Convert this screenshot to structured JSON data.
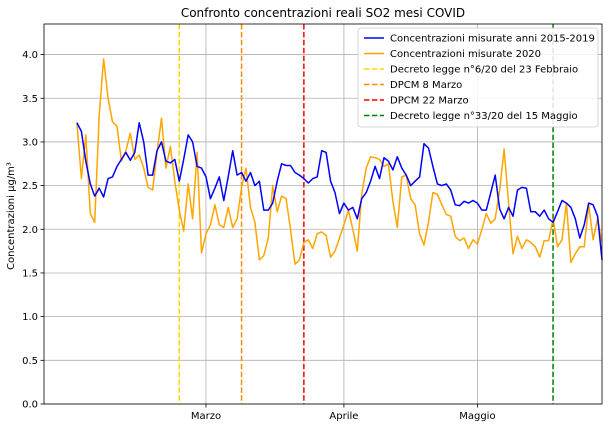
{
  "chart_data": {
    "type": "line",
    "title": "Confronto concentrazioni reali SO2 mesi COVID",
    "xlabel": "",
    "ylabel": "Concentrazioni µg/m³",
    "ylim": [
      0,
      4.35
    ],
    "xlim": [
      -7.4,
      118
    ],
    "yticks": [
      "0.0",
      "0.5",
      "1.0",
      "1.5",
      "2.0",
      "2.5",
      "3.0",
      "3.5",
      "4.0"
    ],
    "ytick_values": [
      0,
      0.5,
      1.0,
      1.5,
      2.0,
      2.5,
      3.0,
      3.5,
      4.0
    ],
    "xticks": [
      {
        "label": "Marzo",
        "x": 29
      },
      {
        "label": "Aprile",
        "x": 60
      },
      {
        "label": "Maggio",
        "x": 90
      }
    ],
    "grid": true,
    "legend_position": "top-right",
    "series": [
      {
        "name": "Concentrazioni misurate anni 2015-2019",
        "color": "#0000ff",
        "values": [
          3.22,
          3.12,
          2.78,
          2.52,
          2.38,
          2.47,
          2.37,
          2.58,
          2.6,
          2.72,
          2.8,
          2.88,
          2.79,
          2.88,
          3.22,
          3.0,
          2.62,
          2.62,
          2.9,
          3.0,
          2.78,
          2.76,
          2.8,
          2.55,
          2.8,
          3.08,
          3.0,
          2.72,
          2.7,
          2.6,
          2.35,
          2.47,
          2.6,
          2.33,
          2.6,
          2.9,
          2.62,
          2.65,
          2.55,
          2.65,
          2.5,
          2.55,
          2.22,
          2.22,
          2.3,
          2.55,
          2.75,
          2.73,
          2.73,
          2.65,
          2.62,
          2.58,
          2.53,
          2.58,
          2.6,
          2.9,
          2.88,
          2.55,
          2.42,
          2.18,
          2.3,
          2.22,
          2.25,
          2.12,
          2.35,
          2.42,
          2.55,
          2.72,
          2.58,
          2.82,
          2.78,
          2.68,
          2.83,
          2.7,
          2.62,
          2.5,
          2.55,
          2.6,
          2.98,
          2.93,
          2.72,
          2.52,
          2.5,
          2.52,
          2.45,
          2.28,
          2.27,
          2.32,
          2.3,
          2.33,
          2.3,
          2.22,
          2.22,
          2.42,
          2.62,
          2.23,
          2.12,
          2.25,
          2.15,
          2.45,
          2.48,
          2.47,
          2.2,
          2.2,
          2.15,
          2.22,
          2.12,
          2.08,
          2.2,
          2.33,
          2.3,
          2.25,
          2.12,
          1.9,
          2.05,
          2.3,
          2.28,
          2.15,
          1.65
        ]
      },
      {
        "name": "Concentrazioni misurate 2020",
        "color": "#ffa500",
        "values": [
          3.22,
          2.58,
          3.08,
          2.18,
          2.08,
          3.3,
          3.95,
          3.5,
          3.23,
          3.18,
          2.78,
          2.9,
          3.1,
          2.8,
          2.85,
          2.7,
          2.48,
          2.45,
          2.88,
          3.27,
          2.7,
          2.95,
          2.55,
          2.22,
          1.98,
          2.52,
          2.12,
          2.88,
          1.73,
          1.95,
          2.05,
          2.28,
          2.05,
          2.02,
          2.25,
          2.02,
          2.12,
          2.48,
          2.7,
          2.25,
          2.08,
          1.65,
          1.7,
          1.9,
          2.5,
          2.2,
          2.38,
          2.35,
          2.0,
          1.6,
          1.65,
          1.85,
          1.88,
          1.78,
          1.95,
          1.97,
          1.93,
          1.68,
          1.75,
          1.9,
          2.05,
          2.22,
          2.0,
          1.75,
          2.4,
          2.7,
          2.83,
          2.82,
          2.8,
          2.72,
          2.75,
          2.32,
          2.02,
          2.6,
          2.62,
          2.35,
          2.28,
          1.95,
          1.82,
          2.08,
          2.42,
          2.4,
          2.28,
          2.17,
          2.15,
          1.92,
          1.87,
          1.9,
          1.78,
          1.88,
          1.83,
          2.0,
          2.18,
          2.07,
          2.12,
          2.45,
          2.92,
          2.3,
          1.72,
          1.92,
          1.78,
          1.88,
          1.85,
          1.8,
          1.68,
          1.87,
          1.87,
          2.12,
          1.8,
          1.88,
          2.3,
          1.62,
          1.72,
          1.8,
          1.8,
          2.28,
          1.88,
          2.12,
          1.85
        ]
      }
    ],
    "vlines": [
      {
        "name": "Decreto legge n°6/20 del 23 Febbraio",
        "color": "#ffd700",
        "x": 23
      },
      {
        "name": "DPCM 8 Marzo",
        "color": "#ff8c00",
        "x": 37
      },
      {
        "name": "DPCM 22 Marzo",
        "color": "#ff0000",
        "x": 51
      },
      {
        "name": "Decreto legge n°33/20 del 15 Maggio",
        "color": "#008000",
        "x": 107
      }
    ]
  }
}
